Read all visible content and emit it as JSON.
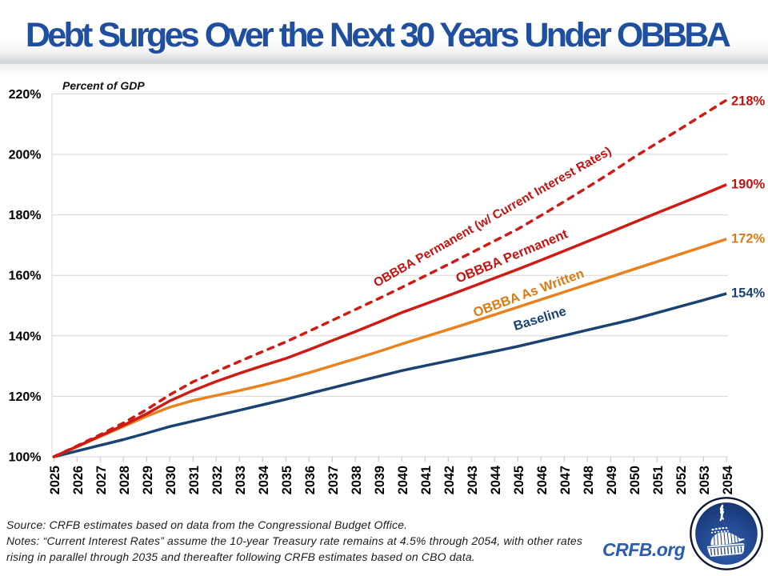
{
  "title": "Debt Surges Over the Next 30 Years Under OBBBA",
  "chart_data": {
    "type": "line",
    "title": "Debt Surges Over the Next 30 Years Under OBBBA",
    "ylabel": "Percent of GDP",
    "xlabel": "",
    "ylim": [
      100,
      220
    ],
    "yticks": [
      100,
      120,
      140,
      160,
      180,
      200,
      220
    ],
    "ytick_labels": [
      "100%",
      "120%",
      "140%",
      "160%",
      "180%",
      "200%",
      "220%"
    ],
    "grid": true,
    "legend_position": "inline-curve-labels",
    "x": [
      2025,
      2026,
      2027,
      2028,
      2029,
      2030,
      2031,
      2032,
      2033,
      2034,
      2035,
      2036,
      2037,
      2038,
      2039,
      2040,
      2041,
      2042,
      2043,
      2044,
      2045,
      2046,
      2047,
      2048,
      2049,
      2050,
      2051,
      2052,
      2053,
      2054
    ],
    "series": [
      {
        "name": "OBBBA Permanent (w/ Current Interest Rates)",
        "style": "dashed",
        "color": "#CE1B16",
        "label_color": "#C31311",
        "end_label": "218%",
        "values": [
          100,
          103.6,
          107.3,
          111.2,
          115.6,
          120.5,
          124.8,
          128.2,
          131.5,
          134.8,
          138.0,
          141.5,
          145.1,
          148.7,
          152.3,
          156.0,
          159.8,
          163.6,
          167.5,
          171.4,
          175.3,
          179.8,
          184.4,
          189.1,
          193.9,
          199.0,
          203.7,
          208.4,
          213.2,
          218.0
        ]
      },
      {
        "name": "OBBBA Permanent",
        "style": "solid",
        "color": "#CE1B16",
        "label_color": "#C31311",
        "end_label": "190%",
        "values": [
          100,
          103.4,
          106.9,
          110.4,
          114.2,
          118.5,
          121.9,
          124.9,
          127.6,
          130.1,
          132.5,
          135.4,
          138.4,
          141.4,
          144.5,
          147.7,
          150.5,
          153.3,
          156.2,
          159.1,
          162.0,
          165.0,
          168.1,
          171.2,
          174.3,
          177.5,
          180.6,
          183.7,
          186.8,
          190.0
        ]
      },
      {
        "name": "OBBBA As Written",
        "style": "solid",
        "color": "#E8821E",
        "label_color": "#DB7A15",
        "end_label": "172%",
        "values": [
          100,
          103.3,
          106.7,
          110.0,
          113.4,
          116.4,
          118.6,
          120.3,
          121.9,
          123.7,
          125.6,
          127.8,
          130.1,
          132.4,
          134.8,
          137.3,
          139.7,
          142.1,
          144.5,
          147.0,
          149.5,
          152.0,
          154.5,
          157.0,
          159.5,
          162.0,
          164.5,
          167.0,
          169.5,
          172.0
        ]
      },
      {
        "name": "Baseline",
        "style": "solid",
        "color": "#1B4372",
        "label_color": "#1B4372",
        "end_label": "154%",
        "values": [
          100,
          101.9,
          103.8,
          105.7,
          107.8,
          110.0,
          111.8,
          113.6,
          115.4,
          117.2,
          119.0,
          120.9,
          122.8,
          124.7,
          126.6,
          128.5,
          130.1,
          131.7,
          133.3,
          134.9,
          136.5,
          138.3,
          140.1,
          141.9,
          143.7,
          145.5,
          147.6,
          149.7,
          151.8,
          154.0
        ]
      }
    ]
  },
  "footer": {
    "lines": [
      "Source: CRFB estimates based on data from the Congressional Budget Office.",
      "Notes: “Current Interest Rates” assume the 10-year Treasury rate remains at 4.5% through 2054, with other rates",
      "rising in parallel through 2035 and thereafter following CRFB estimates based on CBO data."
    ],
    "site": "CRFB.org"
  },
  "logo": {
    "name": "crfb-capitol-logo"
  }
}
